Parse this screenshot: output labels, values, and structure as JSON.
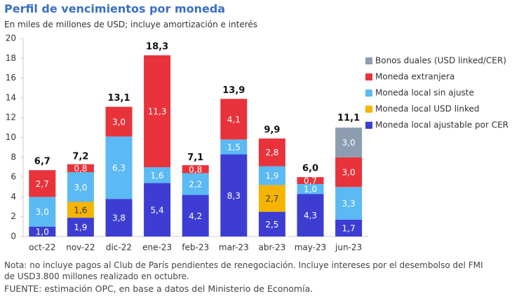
{
  "chart_data": {
    "type": "stacked_bar",
    "title": "Perfil de vencimientos por moneda",
    "subtitle": "En miles de millones de USD; incluye amortización e interés",
    "note": "Nota: no incluye pagos al Club de París pendientes de renegociación. Incluye intereses por el desembolso del FMI de USD3.800 millones realizado en octubre.",
    "source": "FUENTE: estimación OPC, en base a datos del Ministerio de Economía.",
    "categories": [
      "oct-22",
      "nov-22",
      "dic-22",
      "ene-23",
      "feb-23",
      "mar-23",
      "abr-23",
      "may-23",
      "jun-23"
    ],
    "ylim": [
      0,
      20
    ],
    "yticks": [
      0,
      2,
      4,
      6,
      8,
      10,
      12,
      14,
      16,
      18,
      20
    ],
    "legend": "top-right",
    "series": [
      {
        "name": "Moneda local ajustable por CER",
        "color": "#3d3dd4",
        "values": [
          1.0,
          1.9,
          3.8,
          5.4,
          4.2,
          8.3,
          2.5,
          4.3,
          1.7
        ],
        "value_labels": [
          "1,0",
          "1,9",
          "3,8",
          "5,4",
          "4,2",
          "8,3",
          "2,5",
          "4,3",
          "1,7"
        ]
      },
      {
        "name": "Moneda local USD linked",
        "color": "#f5b400",
        "values": [
          null,
          1.6,
          null,
          null,
          null,
          null,
          2.7,
          null,
          null
        ],
        "value_labels": [
          null,
          "1,6",
          null,
          null,
          null,
          null,
          "2,7",
          null,
          null
        ]
      },
      {
        "name": "Moneda local sin ajuste",
        "color": "#5bb9f3",
        "values": [
          3.0,
          3.0,
          6.3,
          1.6,
          2.2,
          1.5,
          1.9,
          1.0,
          3.3
        ],
        "value_labels": [
          "3,0",
          "3,0",
          "6,3",
          "1,6",
          "2,2",
          "1,5",
          "1,9",
          "1,0",
          "3,3"
        ]
      },
      {
        "name": "Moneda extranjera",
        "color": "#e8333b",
        "values": [
          2.7,
          0.8,
          3.0,
          11.3,
          0.8,
          4.1,
          2.8,
          0.7,
          3.0
        ],
        "value_labels": [
          "2,7",
          "0,8",
          "3,0",
          "11,3",
          "0,8",
          "4,1",
          "2,8",
          "0,7",
          "3,0"
        ]
      },
      {
        "name": "Bonos duales (USD linked/CER)",
        "color": "#8c9db2",
        "values": [
          null,
          null,
          null,
          null,
          null,
          null,
          null,
          null,
          3.0
        ],
        "value_labels": [
          null,
          null,
          null,
          null,
          null,
          null,
          null,
          null,
          "3,0"
        ]
      }
    ],
    "totals": {
      "values": [
        6.7,
        7.2,
        13.1,
        18.3,
        7.1,
        13.9,
        9.9,
        6.0,
        11.1
      ],
      "value_labels": [
        "6,7",
        "7,2",
        "13,1",
        "18,3",
        "7,1",
        "13,9",
        "9,9",
        "6,0",
        "11,1"
      ]
    }
  }
}
